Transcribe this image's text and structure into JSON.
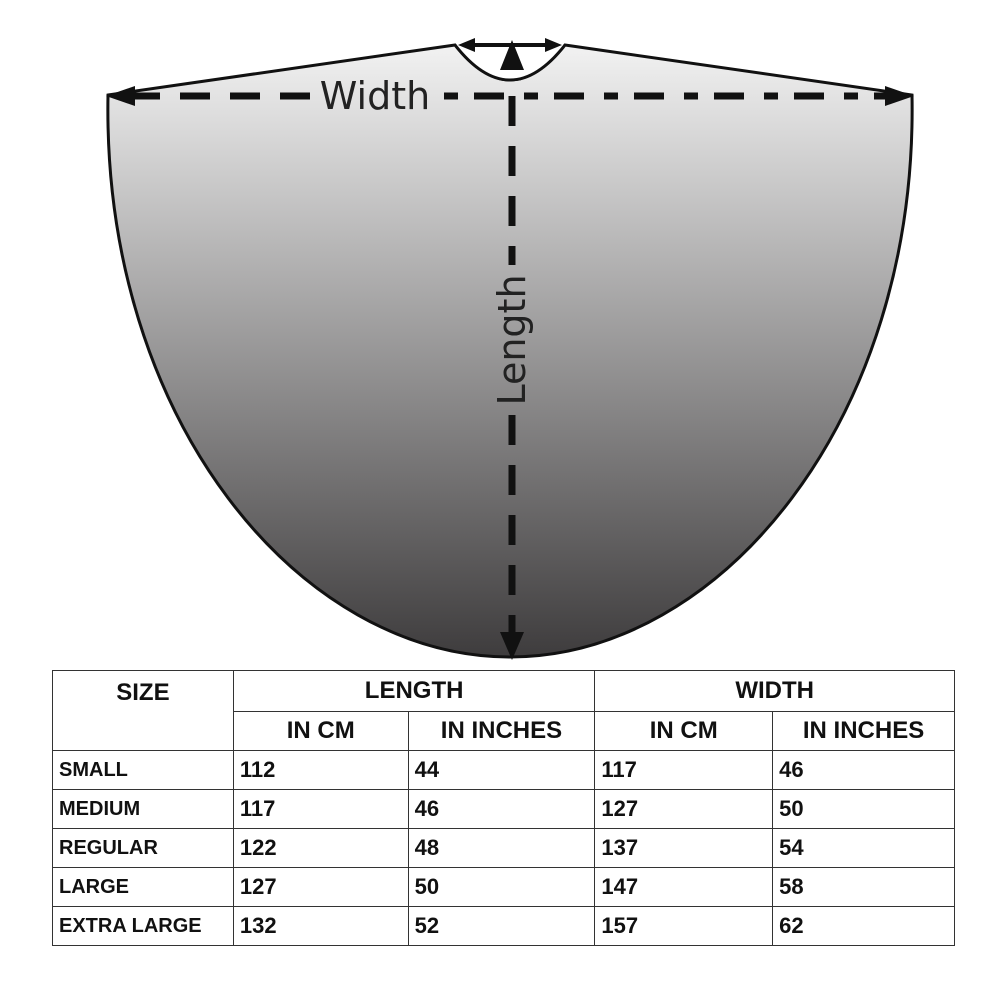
{
  "diagram": {
    "width_label": "Width",
    "length_label": "Length",
    "colors": {
      "fill_top": "#f2f2f2",
      "fill_bottom": "#3e3c3d",
      "stroke": "#111111"
    }
  },
  "table": {
    "headers": {
      "size": "SIZE",
      "length": "LENGTH",
      "width": "WIDTH",
      "length_cm": "IN CM",
      "length_in": "IN INCHES",
      "width_cm": "IN CM",
      "width_in": "IN INCHES"
    },
    "rows": [
      {
        "size": "SMALL",
        "length_cm": "112",
        "length_in": "44",
        "width_cm": "117",
        "width_in": "46"
      },
      {
        "size": "MEDIUM",
        "length_cm": "117",
        "length_in": "46",
        "width_cm": "127",
        "width_in": "50"
      },
      {
        "size": "REGULAR",
        "length_cm": "122",
        "length_in": "48",
        "width_cm": "137",
        "width_in": "54"
      },
      {
        "size": "LARGE",
        "length_cm": "127",
        "length_in": "50",
        "width_cm": "147",
        "width_in": "58"
      },
      {
        "size": "EXTRA LARGE",
        "length_cm": "132",
        "length_in": "52",
        "width_cm": "157",
        "width_in": "62"
      }
    ]
  }
}
